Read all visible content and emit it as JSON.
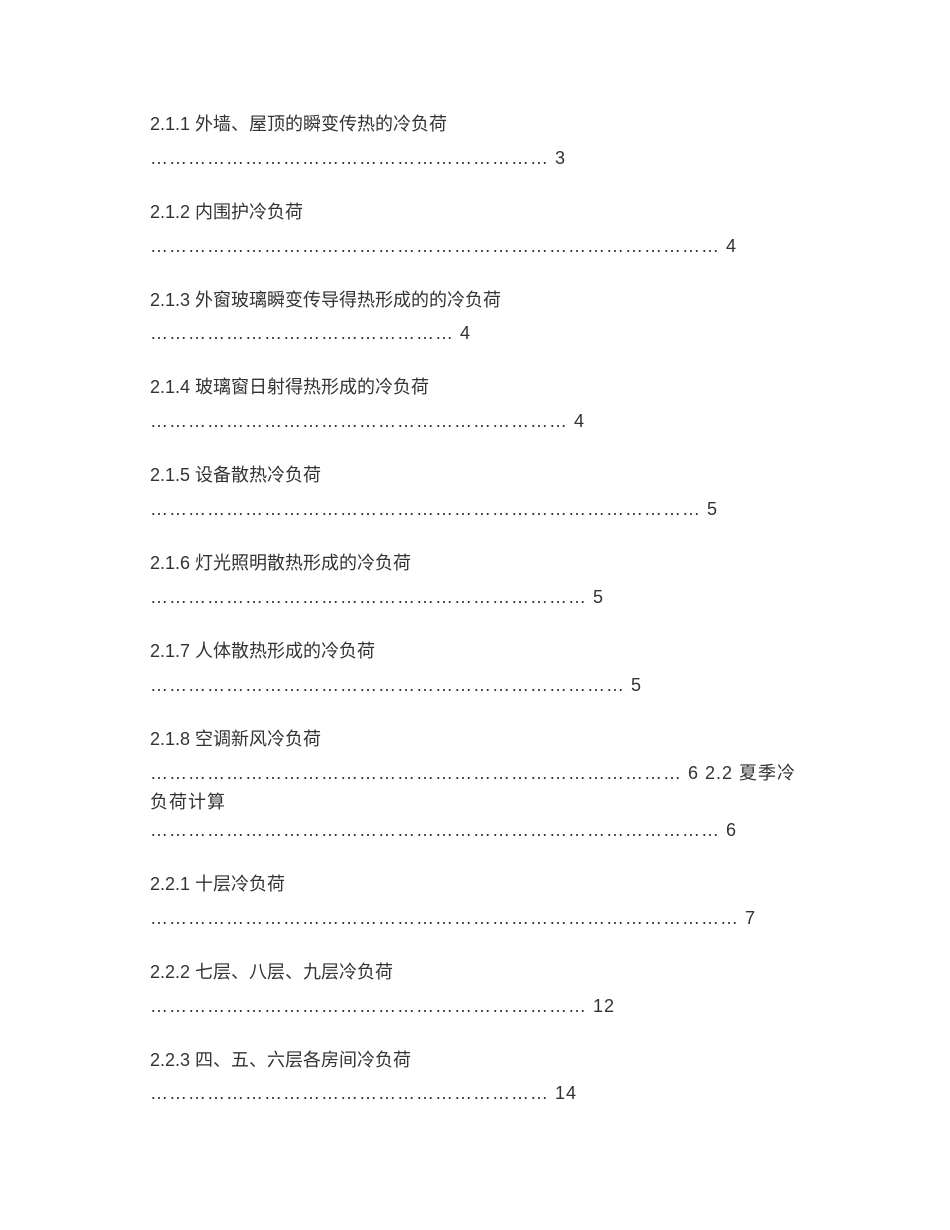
{
  "entries": [
    {
      "title": "2.1.1 外墙、屋顶的瞬变传热的冷负荷",
      "leader": "……………………………………………………… 3"
    },
    {
      "title": "2.1.2 内围护冷负荷",
      "leader": "……………………………………………………………………………… 4"
    },
    {
      "title": "2.1.3 外窗玻璃瞬变传导得热形成的的冷负荷",
      "leader": "………………………………………… 4"
    },
    {
      "title": "2.1.4 玻璃窗日射得热形成的冷负荷",
      "leader": "………………………………………………………… 4"
    },
    {
      "title": "2.1.5 设备散热冷负荷",
      "leader": "…………………………………………………………………………… 5"
    },
    {
      "title": "2.1.6 灯光照明散热形成的冷负荷",
      "leader": "…………………………………………………………… 5"
    },
    {
      "title": "2.1.7 人体散热形成的冷负荷",
      "leader": "………………………………………………………………… 5"
    },
    {
      "title": "2.1.8 空调新风冷负荷",
      "leader": "………………………………………………………………………… 6",
      "inline_after": " 2.2 夏季冷负荷计算",
      "leader2": "……………………………………………………………………………… 6"
    },
    {
      "title": "2.2.1 十层冷负荷",
      "leader": "………………………………………………………………………………… 7"
    },
    {
      "title": "2.2.2 七层、八层、九层冷负荷",
      "leader": "…………………………………………………………… 12"
    },
    {
      "title": "2.2.3 四、五、六层各房间冷负荷",
      "leader": "……………………………………………………… 14"
    }
  ],
  "style": {
    "font_size": 18,
    "text_color": "#333333",
    "background_color": "#ffffff"
  }
}
